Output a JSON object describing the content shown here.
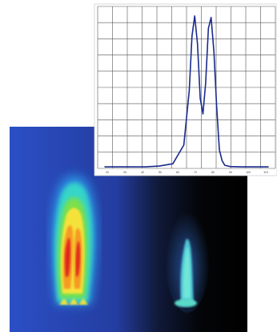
{
  "scene": {
    "description_free": true,
    "panels": {
      "thermal": {
        "palette": [
          "#1f3fb5",
          "#2a8be0",
          "#35d6c8",
          "#7be04a",
          "#f4e23a",
          "#f59a22",
          "#e0281a"
        ]
      },
      "flame": {
        "glow": "#3a7fe8",
        "core": "#6fe6d8"
      }
    }
  },
  "chart_data": {
    "type": "line",
    "title": "",
    "xlabel": "",
    "ylabel": "",
    "x_tick_labels": [
      "20",
      "30",
      "40",
      "50",
      "60",
      "70",
      "80",
      "90",
      "100",
      "110"
    ],
    "grid": true,
    "line_color": "#1a2a8c",
    "series": [
      {
        "x": [
          20,
          30,
          40,
          50,
          60,
          70,
          78,
          82,
          84,
          86,
          88,
          90,
          92,
          94,
          96,
          98,
          100,
          102,
          104,
          106,
          108,
          112,
          120,
          130,
          140
        ],
        "y": [
          0.01,
          0.01,
          0.01,
          0.01,
          0.015,
          0.03,
          0.15,
          0.5,
          0.85,
          0.98,
          0.8,
          0.45,
          0.35,
          0.55,
          0.9,
          0.97,
          0.75,
          0.4,
          0.12,
          0.05,
          0.02,
          0.012,
          0.01,
          0.01,
          0.01
        ]
      }
    ]
  }
}
